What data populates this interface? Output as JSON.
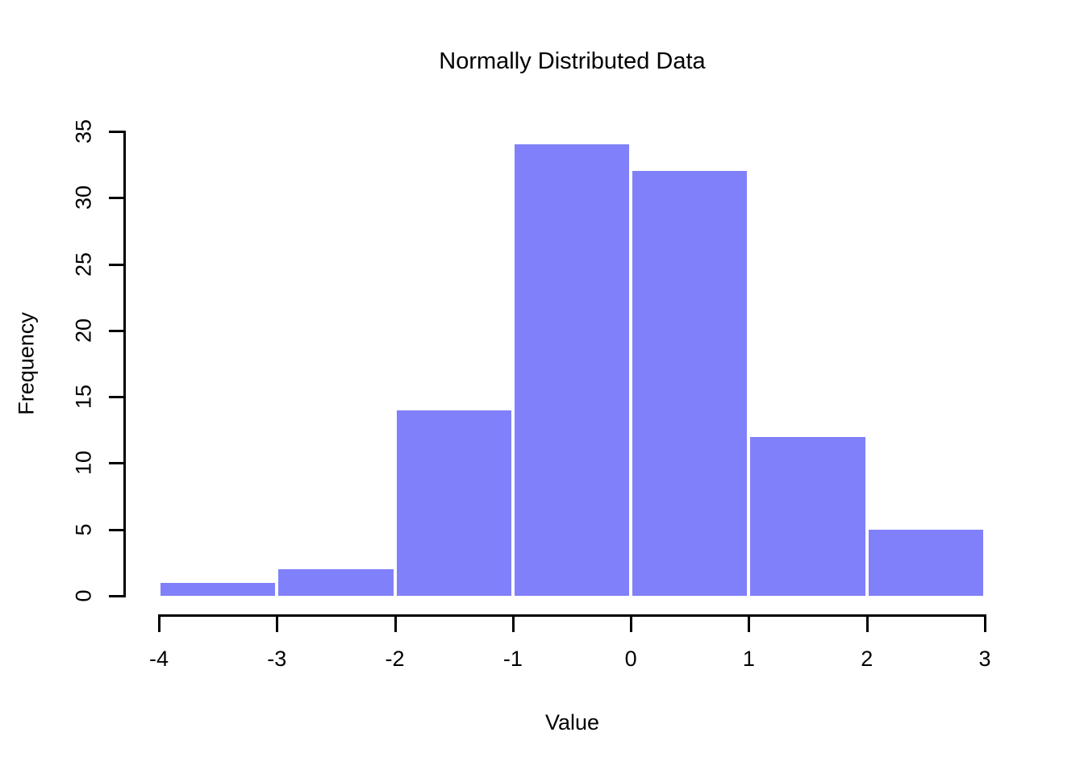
{
  "chart_data": {
    "type": "bar",
    "subtype": "histogram",
    "title": "Normally Distributed Data",
    "xlabel": "Value",
    "ylabel": "Frequency",
    "bins": [
      [
        -4,
        -3
      ],
      [
        -3,
        -2
      ],
      [
        -2,
        -1
      ],
      [
        -1,
        0
      ],
      [
        0,
        1
      ],
      [
        1,
        2
      ],
      [
        2,
        3
      ]
    ],
    "categories": [
      "[-4,-3]",
      "(-3,-2]",
      "(-2,-1]",
      "(-1,0]",
      "(0,1]",
      "(1,2]",
      "(2,3]"
    ],
    "values": [
      1,
      2,
      14,
      34,
      32,
      12,
      5
    ],
    "xlim": [
      -4,
      3
    ],
    "ylim": [
      0,
      35
    ],
    "x_ticks": [
      -4,
      -3,
      -2,
      -1,
      0,
      1,
      2,
      3
    ],
    "y_ticks": [
      0,
      5,
      10,
      15,
      20,
      25,
      30,
      35
    ],
    "bar_color": "#8080FA",
    "bar_gap_color": "#ffffff",
    "axis_color": "#000000",
    "text_color": "#000000",
    "background_color": "#ffffff",
    "grid": false,
    "legend": false
  }
}
